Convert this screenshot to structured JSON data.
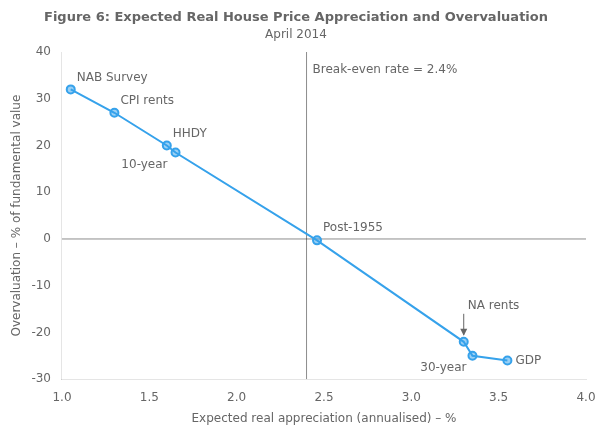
{
  "chart_data": {
    "type": "line",
    "title": "Figure 6: Expected Real House Price Appreciation and Overvaluation",
    "subtitle": "April 2014",
    "xlabel": "Expected real appreciation (annualised) – %",
    "ylabel": "Overvaluation – % of fundamental value",
    "x": [
      1.05,
      1.3,
      1.6,
      1.65,
      2.46,
      3.3,
      3.35,
      3.55
    ],
    "values": [
      32,
      27,
      20,
      18.5,
      -0.3,
      -22,
      -25,
      -26
    ],
    "xlim": [
      1.0,
      4.0
    ],
    "ylim": [
      -30,
      40
    ],
    "xticks": [
      {
        "value": 1,
        "label": "1.0"
      },
      1.5,
      {
        "value": 2,
        "label": "2.0"
      },
      2.5,
      {
        "value": 3,
        "label": "3.0"
      },
      3.5,
      {
        "value": 4,
        "label": "4.0"
      }
    ],
    "yticks": [
      -30,
      -20,
      -10,
      0,
      10,
      20,
      30,
      40
    ],
    "reference_lines": {
      "x": [
        2.4
      ],
      "y": [
        0
      ]
    },
    "annotations": [
      {
        "text": "NAB Survey",
        "x": 1.05,
        "y": 32
      },
      {
        "text": "CPI rents",
        "x": 1.3,
        "y": 27
      },
      {
        "text": "HHDY",
        "x": 1.6,
        "y": 20
      },
      {
        "text": "10-year",
        "x": 1.65,
        "y": 18.5
      },
      {
        "text": "Post-1955",
        "x": 2.46,
        "y": -0.3
      },
      {
        "text": "NA rents",
        "x": 3.3,
        "y": -22
      },
      {
        "text": "30-year",
        "x": 3.35,
        "y": -25
      },
      {
        "text": "GDP",
        "x": 3.55,
        "y": -26
      },
      {
        "text": "Break-even rate = 2.4%",
        "x": 2.4,
        "y": 37.5
      }
    ],
    "grid": false
  }
}
